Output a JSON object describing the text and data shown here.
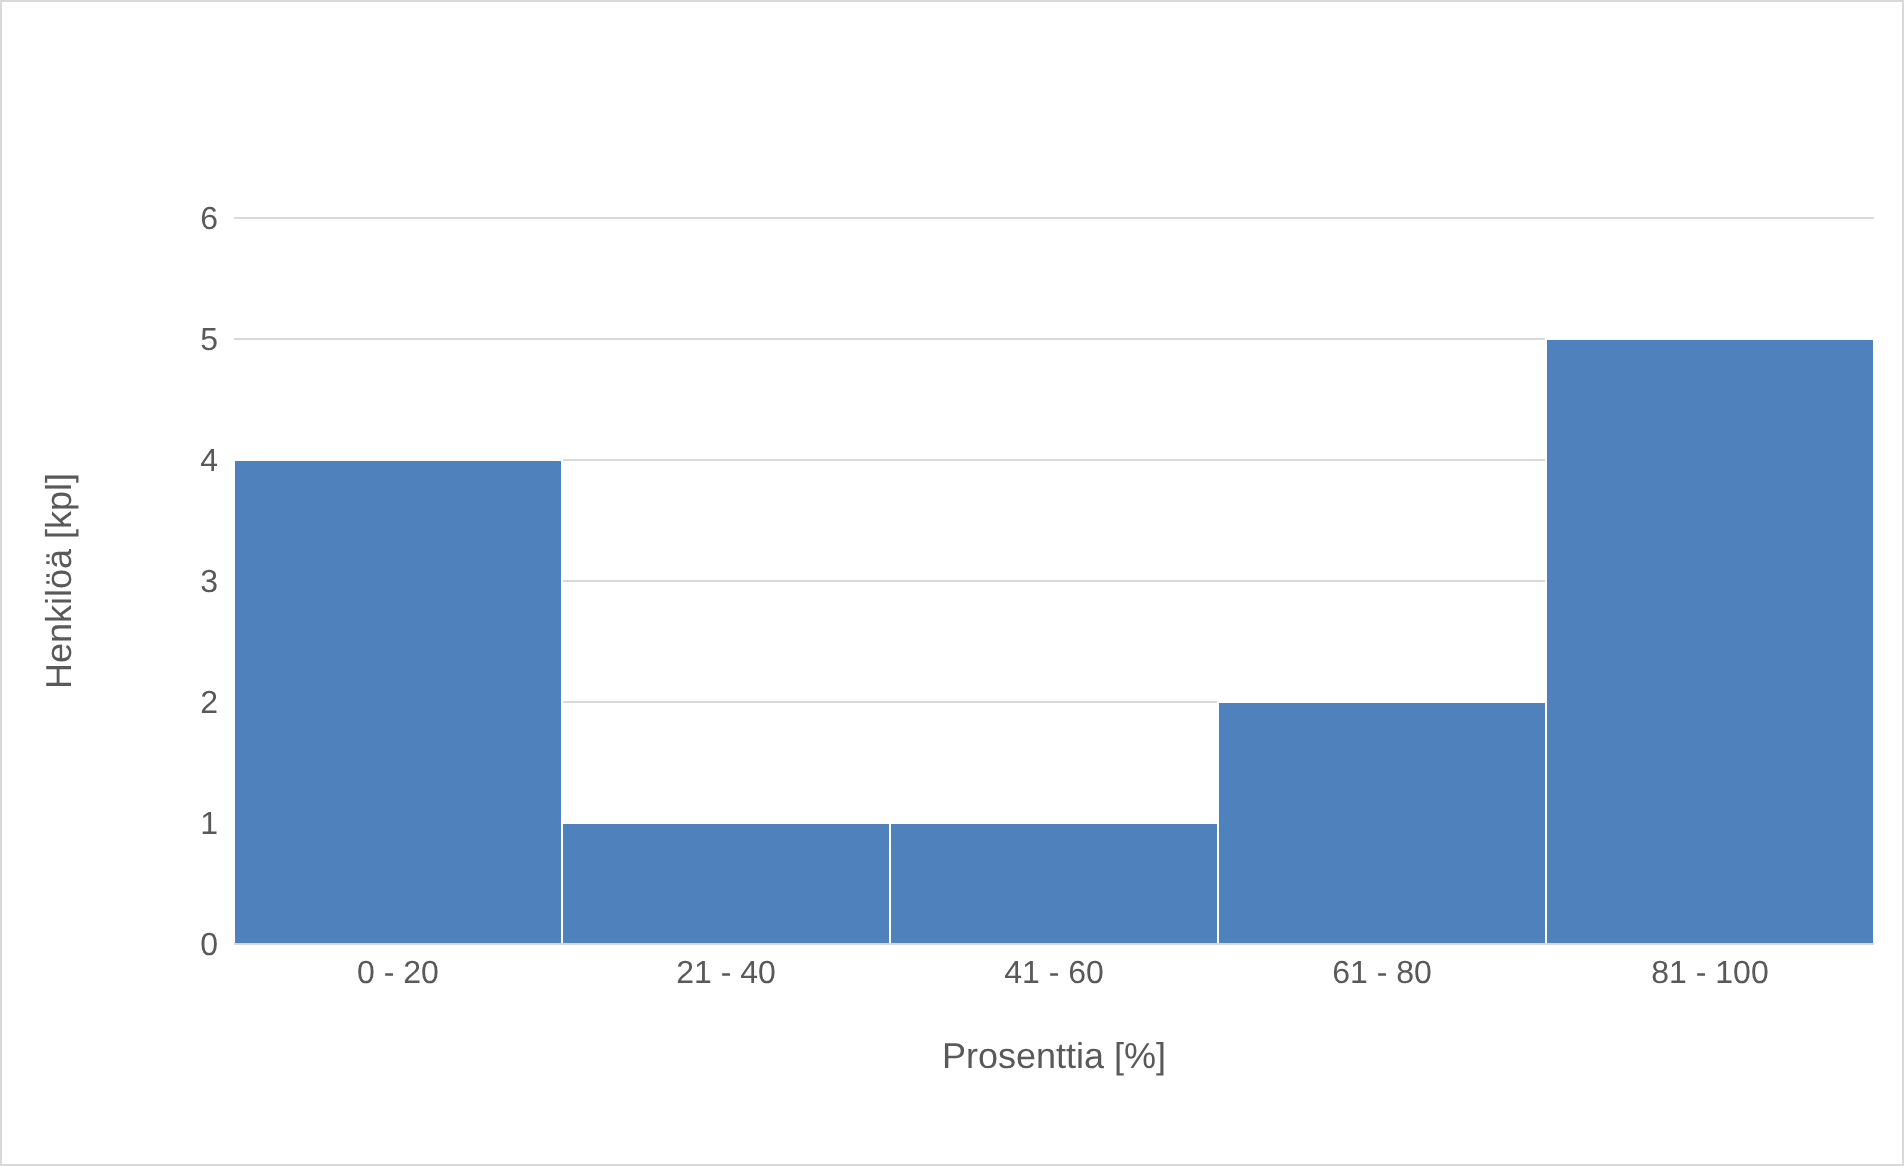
{
  "chart_data": {
    "type": "bar",
    "xlabel": "Prosenttia [%]",
    "ylabel": "Henkilöä [kpl]",
    "categories": [
      "0 - 20",
      "21 - 40",
      "41 - 60",
      "61 - 80",
      "81 - 100"
    ],
    "values": [
      4,
      1,
      1,
      2,
      5
    ],
    "color": "#4f81bd",
    "ylim": [
      0,
      6
    ],
    "yticks": [
      0,
      1,
      2,
      3,
      4,
      5,
      6
    ],
    "grid": "y"
  }
}
